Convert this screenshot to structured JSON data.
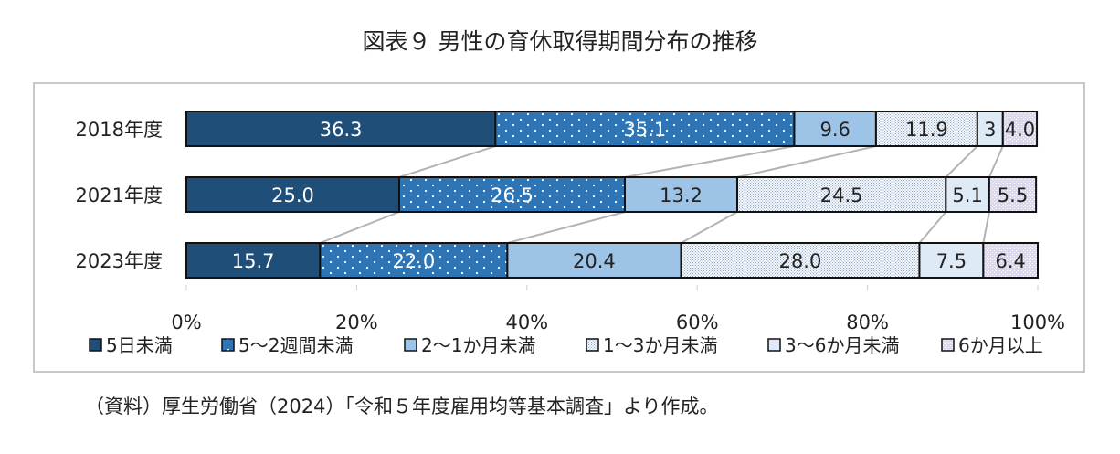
{
  "title": "図表９ 男性の育休取得期間分布の推移",
  "source_note": "（資料）厚生労働省（2024）「令和５年度雇用均等基本調査」より作成。",
  "chart_data": {
    "type": "bar",
    "orientation": "horizontal",
    "stacked": "100%",
    "title": "図表９ 男性の育休取得期間分布の推移",
    "categories": [
      "2018年度",
      "2021年度",
      "2023年度"
    ],
    "series": [
      {
        "name": "5日未満",
        "values": [
          36.3,
          25.0,
          15.7
        ],
        "labels": [
          "36.3",
          "25.0",
          "15.7"
        ],
        "color": "#1f4e79",
        "pattern": "solid"
      },
      {
        "name": "5～2週間未満",
        "values": [
          35.1,
          26.5,
          22.0
        ],
        "labels": [
          "35.1",
          "26.5",
          "22.0"
        ],
        "color": "#2e75b6",
        "pattern": "dots"
      },
      {
        "name": "2～1か月未満",
        "values": [
          9.6,
          13.2,
          20.4
        ],
        "labels": [
          "9.6",
          "13.2",
          "20.4"
        ],
        "color": "#9dc3e6",
        "pattern": "solid"
      },
      {
        "name": "1～3か月未満",
        "values": [
          11.9,
          24.5,
          28.0
        ],
        "labels": [
          "11.9",
          "24.5",
          "28.0"
        ],
        "color": "#dce6f1",
        "pattern": "fine-dots"
      },
      {
        "name": "3～6か月未満",
        "values": [
          3.0,
          5.1,
          7.5
        ],
        "labels": [
          "3",
          "5.1",
          "7.5"
        ],
        "color": "#deebf7",
        "pattern": "solid"
      },
      {
        "name": "6か月以上",
        "values": [
          4.0,
          5.5,
          6.4
        ],
        "labels": [
          "4.0",
          "5.5",
          "6.4"
        ],
        "color": "#ccc4f2",
        "pattern": "light-dots"
      }
    ],
    "x_ticks": [
      "0%",
      "20%",
      "40%",
      "60%",
      "80%",
      "100%"
    ],
    "xlim": [
      0,
      100
    ],
    "connector_lines": true,
    "grid": false,
    "legend_position": "bottom"
  }
}
